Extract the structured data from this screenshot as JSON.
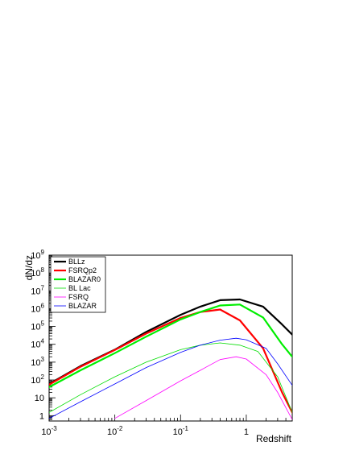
{
  "chart_data": {
    "type": "line",
    "xlabel": "Redshift",
    "ylabel": "dN/dz",
    "xscale": "log",
    "yscale": "log",
    "xlim": [
      0.001,
      5
    ],
    "ylim": [
      0.5,
      1000000000
    ],
    "x_ticks": [
      {
        "value": 0.001,
        "base": "10",
        "exp": "-3"
      },
      {
        "value": 0.01,
        "base": "10",
        "exp": "-2"
      },
      {
        "value": 0.1,
        "base": "10",
        "exp": "-1"
      },
      {
        "value": 1,
        "base": "1",
        "exp": ""
      }
    ],
    "y_ticks": [
      {
        "value": 1,
        "base": "1",
        "exp": ""
      },
      {
        "value": 10,
        "base": "10",
        "exp": ""
      },
      {
        "value": 100,
        "base": "10",
        "exp": "2"
      },
      {
        "value": 1000,
        "base": "10",
        "exp": "3"
      },
      {
        "value": 10000,
        "base": "10",
        "exp": "4"
      },
      {
        "value": 100000,
        "base": "10",
        "exp": "5"
      },
      {
        "value": 1000000,
        "base": "10",
        "exp": "6"
      },
      {
        "value": 10000000,
        "base": "10",
        "exp": "7"
      },
      {
        "value": 100000000,
        "base": "10",
        "exp": "8"
      },
      {
        "value": 1000000000,
        "base": "10",
        "exp": "9"
      }
    ],
    "legend_position": "top-left",
    "grid": false,
    "series": [
      {
        "name": "BLLz",
        "color": "#000000",
        "width": 2.2,
        "x": [
          0.001,
          0.003,
          0.01,
          0.03,
          0.1,
          0.2,
          0.4,
          0.8,
          1.8,
          3.5,
          5
        ],
        "y": [
          60,
          600,
          5000,
          50000,
          450000,
          1300000,
          3000000,
          3300000,
          1300000,
          130000,
          35000
        ]
      },
      {
        "name": "FSRQp2",
        "color": "#ff0000",
        "width": 2.2,
        "x": [
          0.001,
          0.003,
          0.01,
          0.03,
          0.1,
          0.2,
          0.4,
          0.8,
          1.8,
          3.5,
          5
        ],
        "y": [
          55,
          550,
          4800,
          40000,
          300000,
          650000,
          900000,
          220000,
          6000,
          20,
          1.5
        ]
      },
      {
        "name": "BLAZAR0",
        "color": "#00ee00",
        "width": 2.2,
        "x": [
          0.001,
          0.003,
          0.01,
          0.03,
          0.1,
          0.2,
          0.4,
          0.8,
          1.8,
          3.5,
          5
        ],
        "y": [
          40,
          350,
          3200,
          27000,
          250000,
          650000,
          1500000,
          1700000,
          320000,
          10000,
          2000
        ]
      },
      {
        "name": "BL Lac",
        "color": "#00dd00",
        "width": 0.8,
        "x": [
          0.001,
          0.003,
          0.01,
          0.03,
          0.1,
          0.2,
          0.4,
          0.8,
          1.5,
          3,
          5
        ],
        "y": [
          1.5,
          15,
          150,
          1000,
          5000,
          9000,
          12000,
          9000,
          4000,
          150,
          1.5
        ]
      },
      {
        "name": "FSRQ",
        "color": "#ff00ff",
        "width": 0.8,
        "x": [
          0.01,
          0.03,
          0.1,
          0.2,
          0.4,
          0.7,
          1,
          2,
          3,
          5
        ],
        "y": [
          0.7,
          7,
          90,
          350,
          1400,
          2000,
          1500,
          200,
          20,
          0.6
        ]
      },
      {
        "name": "BLAZAR",
        "color": "#0000ff",
        "width": 0.8,
        "x": [
          0.001,
          0.003,
          0.01,
          0.03,
          0.1,
          0.2,
          0.4,
          0.7,
          1,
          2,
          3,
          5
        ],
        "y": [
          0.7,
          6,
          60,
          500,
          3500,
          9000,
          17000,
          22000,
          18000,
          6000,
          800,
          50
        ]
      }
    ]
  }
}
